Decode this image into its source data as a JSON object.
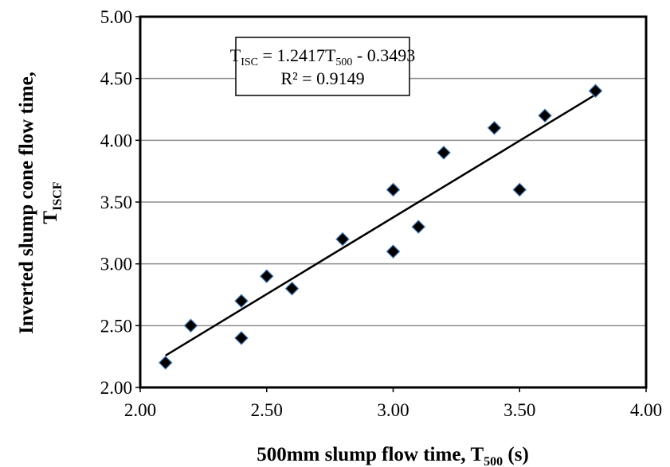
{
  "chart_data": {
    "type": "scatter",
    "xlim": [
      2.0,
      4.0
    ],
    "ylim": [
      2.0,
      5.0
    ],
    "x_ticks": [
      "2.00",
      "2.50",
      "3.00",
      "3.50",
      "4.00"
    ],
    "y_ticks": [
      "2.00",
      "2.50",
      "3.00",
      "3.50",
      "4.00",
      "4.50",
      "5.00"
    ],
    "grid": "horizontal",
    "xlabel": {
      "text": "500mm slump flow time, T",
      "sub": "500",
      "suffix": " (s)"
    },
    "ylabel": {
      "line1": "Inverted slump cone flow time,",
      "line2": "T",
      "line2_sub": "ISCF"
    },
    "points": [
      {
        "x": 2.1,
        "y": 2.2
      },
      {
        "x": 2.2,
        "y": 2.5
      },
      {
        "x": 2.4,
        "y": 2.7
      },
      {
        "x": 2.4,
        "y": 2.4
      },
      {
        "x": 2.5,
        "y": 2.9
      },
      {
        "x": 2.6,
        "y": 2.8
      },
      {
        "x": 2.8,
        "y": 3.2
      },
      {
        "x": 3.0,
        "y": 3.6
      },
      {
        "x": 3.0,
        "y": 3.1
      },
      {
        "x": 3.1,
        "y": 3.3
      },
      {
        "x": 3.2,
        "y": 3.9
      },
      {
        "x": 3.4,
        "y": 4.1
      },
      {
        "x": 3.5,
        "y": 3.6
      },
      {
        "x": 3.6,
        "y": 4.2
      },
      {
        "x": 3.8,
        "y": 4.4
      }
    ],
    "trendline": {
      "slope": 1.2417,
      "intercept": -0.3493,
      "x_range": [
        2.1,
        3.8
      ]
    },
    "equation": {
      "t": "T",
      "t_sub": "ISC",
      "mid": " = 1.2417T",
      "mid_sub": "500",
      "tail": " - 0.3493",
      "r2": "R² = 0.9149"
    },
    "colors": {
      "marker_fill": "#000000",
      "marker_stroke": "#4f81bd",
      "trendline": "#000000",
      "grid": "#8c8c8c",
      "frame": "#000000"
    }
  }
}
